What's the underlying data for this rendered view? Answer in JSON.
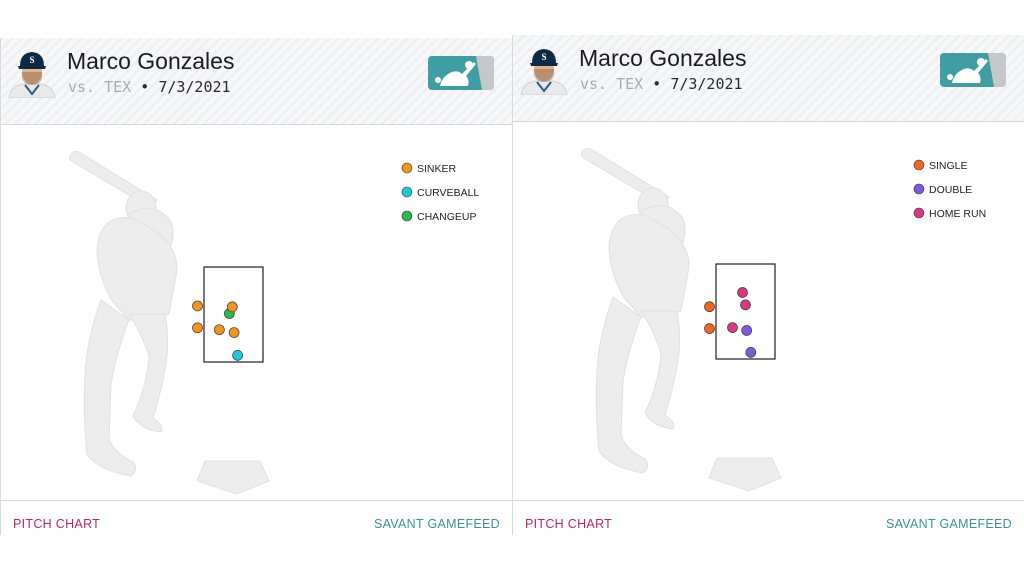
{
  "panels": [
    {
      "player_name": "Marco Gonzales",
      "opponent": "vs. TEX",
      "date": "7/3/2021",
      "footer_left": "PITCH CHART",
      "footer_right": "SAVANT GAMEFEED"
    },
    {
      "player_name": "Marco Gonzales",
      "opponent": "vs. TEX",
      "date": "7/3/2021",
      "footer_left": "PITCH CHART",
      "footer_right": "SAVANT GAMEFEED"
    }
  ],
  "colors": {
    "mlb_teal": "#3e9ea3",
    "mlb_gray": "#c5c7ca",
    "strike_zone_border": "#1f1f1f"
  },
  "chart_data": [
    {
      "type": "scatter",
      "legend_position": "top-right",
      "legend": [
        {
          "label": "SINKER",
          "color": "#f0961f"
        },
        {
          "label": "CURVEBALL",
          "color": "#1ec9dc"
        },
        {
          "label": "CHANGEUP",
          "color": "#2db84a"
        }
      ],
      "points": [
        {
          "category": "CHANGEUP",
          "x": 0.43,
          "y": 0.51
        },
        {
          "category": "SINKER",
          "x": 0.48,
          "y": 0.58
        },
        {
          "category": "SINKER",
          "x": -0.11,
          "y": 0.59
        },
        {
          "category": "SINKER",
          "x": -0.11,
          "y": 0.36
        },
        {
          "category": "SINKER",
          "x": 0.26,
          "y": 0.34
        },
        {
          "category": "SINKER",
          "x": 0.51,
          "y": 0.31
        },
        {
          "category": "CURVEBALL",
          "x": 0.57,
          "y": 0.07
        }
      ]
    },
    {
      "type": "scatter",
      "legend_position": "top-right",
      "legend": [
        {
          "label": "SINGLE",
          "color": "#f0661c"
        },
        {
          "label": "DOUBLE",
          "color": "#7a5be0"
        },
        {
          "label": "HOME RUN",
          "color": "#d9377e"
        }
      ],
      "points": [
        {
          "category": "HOME RUN",
          "x": 0.45,
          "y": 0.7
        },
        {
          "category": "HOME RUN",
          "x": 0.5,
          "y": 0.57
        },
        {
          "category": "SINGLE",
          "x": -0.11,
          "y": 0.55
        },
        {
          "category": "SINGLE",
          "x": -0.11,
          "y": 0.32
        },
        {
          "category": "HOME RUN",
          "x": 0.28,
          "y": 0.33
        },
        {
          "category": "DOUBLE",
          "x": 0.52,
          "y": 0.3
        },
        {
          "category": "DOUBLE",
          "x": 0.59,
          "y": 0.07
        }
      ]
    }
  ]
}
